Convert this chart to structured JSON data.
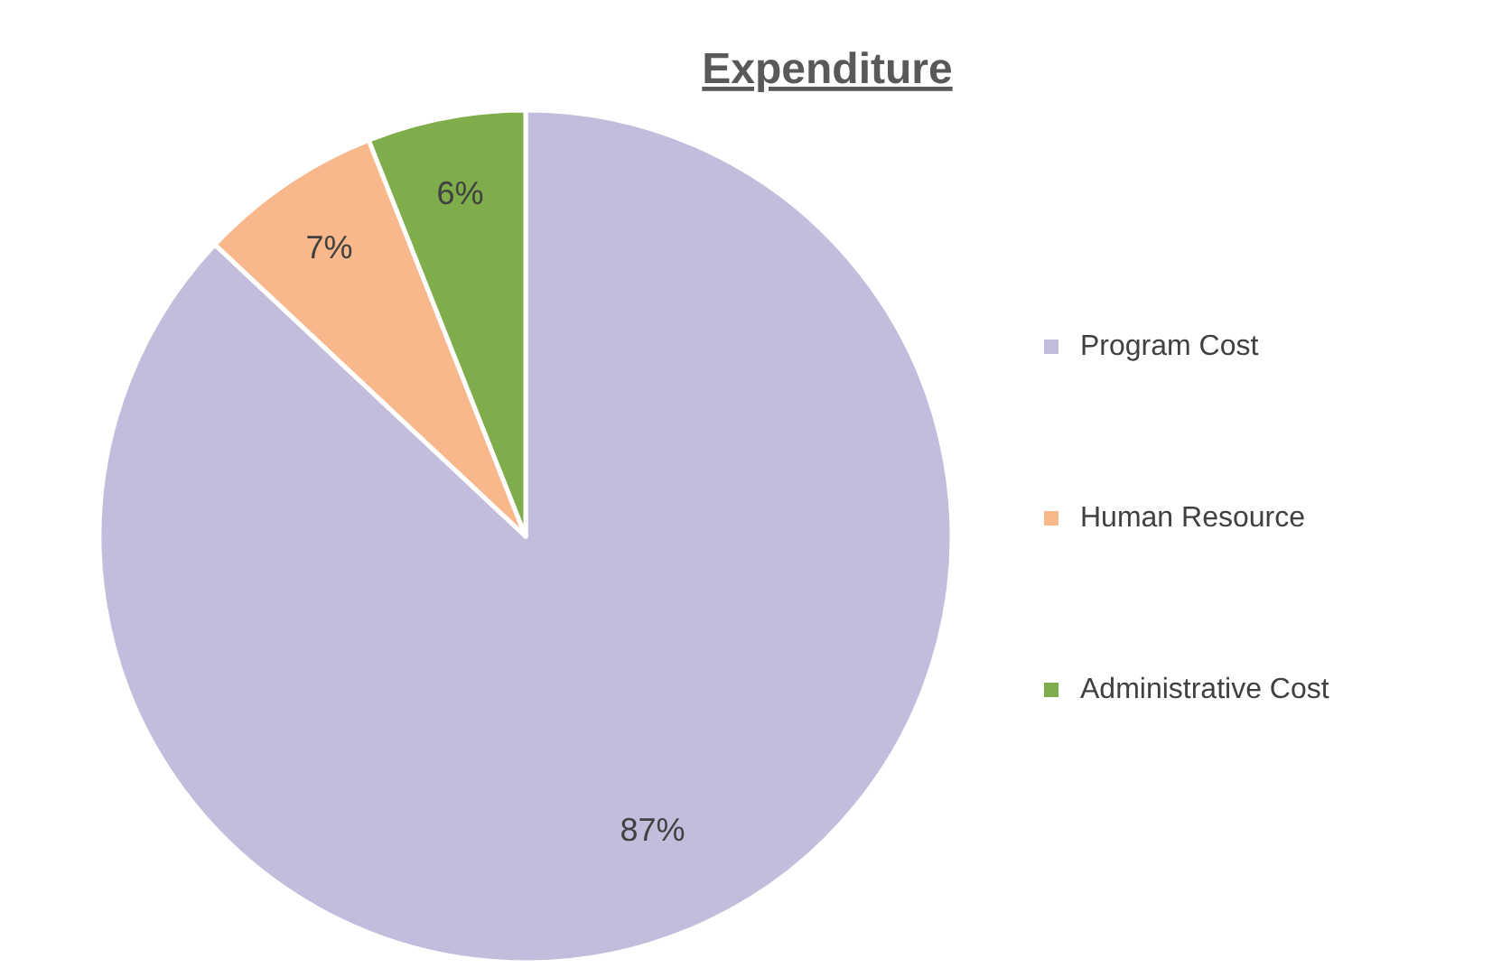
{
  "chart_data": {
    "type": "pie",
    "title": "Expenditure",
    "categories": [
      "Program Cost",
      "Human Resource",
      "Administrative Cost"
    ],
    "values": [
      87,
      7,
      6
    ],
    "colors": [
      "#c4bcdc",
      "#f8b88b",
      "#80ad4c"
    ],
    "value_labels": [
      "87%",
      "7%",
      "6%"
    ],
    "legend": "right"
  }
}
